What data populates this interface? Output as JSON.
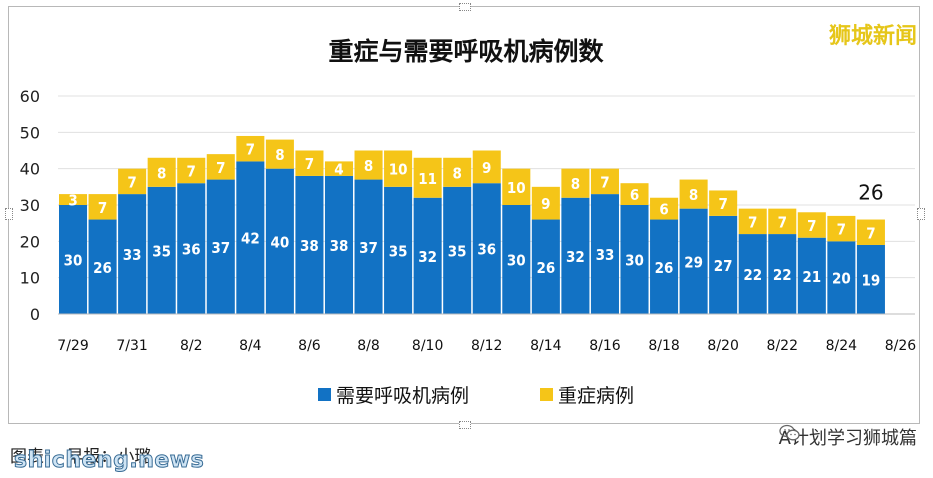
{
  "watermark_top": "狮城新闻",
  "caption": "图表：  早报：小璐",
  "site_watermark": "shicheng.news",
  "wechat_label": "A计划学习狮城篇",
  "colors": {
    "ventilator": "#1272c4",
    "severe": "#f5c518"
  },
  "chart_data": {
    "type": "bar",
    "stacked": true,
    "title": "重症与需要呼吸机病例数",
    "ylim": [
      0,
      60
    ],
    "yticks": [
      0,
      10,
      20,
      30,
      40,
      50,
      60
    ],
    "categories": [
      "7/29",
      "7/30",
      "7/31",
      "8/1",
      "8/2",
      "8/3",
      "8/4",
      "8/5",
      "8/6",
      "8/7",
      "8/8",
      "8/9",
      "8/10",
      "8/11",
      "8/12",
      "8/13",
      "8/14",
      "8/15",
      "8/16",
      "8/17",
      "8/18",
      "8/19",
      "8/20",
      "8/21",
      "8/22",
      "8/23",
      "8/24",
      "8/25"
    ],
    "x_tick_labels": [
      "7/29",
      "7/31",
      "8/2",
      "8/4",
      "8/6",
      "8/8",
      "8/10",
      "8/12",
      "8/14",
      "8/16",
      "8/18",
      "8/20",
      "8/22",
      "8/24",
      "8/26"
    ],
    "series": [
      {
        "name": "需要呼吸机病例",
        "values": [
          30,
          26,
          33,
          35,
          36,
          37,
          42,
          40,
          38,
          38,
          37,
          35,
          32,
          35,
          36,
          30,
          26,
          32,
          33,
          30,
          26,
          29,
          27,
          22,
          22,
          21,
          20,
          19
        ]
      },
      {
        "name": "重症病例",
        "values": [
          3,
          7,
          7,
          8,
          7,
          7,
          7,
          8,
          7,
          4,
          8,
          10,
          11,
          8,
          9,
          10,
          9,
          8,
          7,
          6,
          6,
          8,
          7,
          7,
          7,
          7,
          7,
          7
        ]
      }
    ],
    "annotation": "26",
    "legend_position": "bottom",
    "grid": true
  }
}
